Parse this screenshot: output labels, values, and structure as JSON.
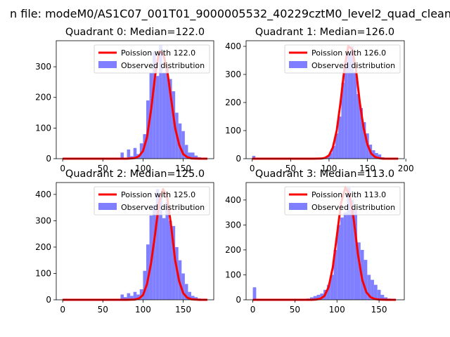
{
  "suptitle": "n file: modeM0/AS1C07_001T01_9000005532_40229cztM0_level2_quad_clean",
  "colors": {
    "bar": "#7f7fff",
    "line": "#ff0000"
  },
  "chart_data": [
    {
      "type": "bar",
      "title": "Quadrant 0: Median=122.0",
      "xlim": [
        -8,
        188
      ],
      "ylim": [
        0,
        385
      ],
      "xticks": [
        0,
        50,
        100,
        150
      ],
      "yticks": [
        0,
        100,
        200,
        300
      ],
      "legend": [
        "Poission with 122.0",
        "Observed distribution"
      ],
      "legend_position": "top-right",
      "observed": {
        "bin_width": 4,
        "x": [
          0,
          4,
          8,
          12,
          16,
          20,
          24,
          28,
          32,
          36,
          40,
          44,
          48,
          52,
          56,
          60,
          64,
          68,
          72,
          76,
          80,
          84,
          88,
          92,
          96,
          100,
          104,
          108,
          112,
          116,
          120,
          124,
          128,
          132,
          136,
          140,
          144,
          148,
          152,
          156,
          160,
          164,
          168,
          172,
          176
        ],
        "values": [
          0,
          0,
          0,
          0,
          0,
          0,
          0,
          0,
          0,
          0,
          0,
          0,
          0,
          0,
          0,
          0,
          0,
          0,
          20,
          0,
          30,
          8,
          35,
          15,
          50,
          80,
          190,
          280,
          350,
          270,
          370,
          280,
          300,
          260,
          220,
          150,
          115,
          90,
          45,
          20,
          20,
          10,
          5,
          2,
          0
        ]
      },
      "poisson": {
        "x": [
          0,
          10,
          20,
          30,
          40,
          50,
          60,
          70,
          80,
          90,
          95,
          100,
          105,
          110,
          115,
          120,
          125,
          130,
          135,
          140,
          145,
          150,
          155,
          160,
          170,
          180
        ],
        "values": [
          0,
          0,
          0,
          0,
          0,
          0,
          0,
          0,
          0.1,
          2,
          8,
          25,
          70,
          160,
          270,
          350,
          345,
          290,
          195,
          100,
          45,
          15,
          5,
          1,
          0,
          0
        ]
      }
    },
    {
      "type": "bar",
      "title": "Quadrant 1: Median=126.0",
      "xlim": [
        -8,
        198
      ],
      "ylim": [
        0,
        420
      ],
      "xticks": [
        0,
        50,
        100,
        150,
        200
      ],
      "yticks": [
        0,
        100,
        200,
        300,
        400
      ],
      "legend": [
        "Poission with 126.0",
        "Observed distribution"
      ],
      "legend_position": "top-right",
      "observed": {
        "bin_width": 4,
        "x": [
          0,
          4,
          8,
          12,
          16,
          20,
          24,
          28,
          32,
          36,
          40,
          44,
          48,
          52,
          56,
          60,
          64,
          68,
          72,
          76,
          80,
          84,
          88,
          92,
          96,
          100,
          104,
          108,
          112,
          116,
          120,
          124,
          128,
          132,
          136,
          140,
          144,
          148,
          152,
          156,
          160,
          164,
          168,
          172,
          176,
          180,
          184,
          188
        ],
        "values": [
          10,
          0,
          0,
          0,
          0,
          0,
          0,
          0,
          0,
          0,
          0,
          0,
          0,
          0,
          0,
          0,
          0,
          0,
          0,
          0,
          0,
          0,
          0,
          5,
          8,
          20,
          45,
          90,
          150,
          270,
          350,
          370,
          400,
          310,
          230,
          180,
          130,
          90,
          50,
          30,
          20,
          15,
          5,
          2,
          0,
          0,
          0,
          0
        ]
      },
      "poisson": {
        "x": [
          0,
          10,
          20,
          30,
          40,
          50,
          60,
          70,
          80,
          90,
          95,
          100,
          105,
          110,
          115,
          120,
          125,
          130,
          135,
          140,
          145,
          150,
          155,
          160,
          165,
          170,
          180,
          190
        ],
        "values": [
          0,
          0,
          0,
          0,
          0,
          0,
          0,
          0,
          0,
          0.5,
          3,
          12,
          40,
          100,
          200,
          320,
          400,
          390,
          320,
          200,
          110,
          50,
          18,
          6,
          2,
          0,
          0,
          0
        ]
      }
    },
    {
      "type": "bar",
      "title": "Quadrant 2: Median=125.0",
      "xlim": [
        -8,
        188
      ],
      "ylim": [
        0,
        445
      ],
      "xticks": [
        0,
        50,
        100,
        150
      ],
      "yticks": [
        0,
        100,
        200,
        300,
        400
      ],
      "legend": [
        "Poission with 125.0",
        "Observed distribution"
      ],
      "legend_position": "top-right",
      "observed": {
        "bin_width": 4,
        "x": [
          0,
          4,
          8,
          12,
          16,
          20,
          24,
          28,
          32,
          36,
          40,
          44,
          48,
          52,
          56,
          60,
          64,
          68,
          72,
          76,
          80,
          84,
          88,
          92,
          96,
          100,
          104,
          108,
          112,
          116,
          120,
          124,
          128,
          132,
          136,
          140,
          144,
          148,
          152,
          156,
          160,
          164,
          168,
          172,
          176
        ],
        "values": [
          0,
          0,
          0,
          0,
          0,
          0,
          0,
          0,
          0,
          0,
          0,
          0,
          0,
          0,
          0,
          0,
          0,
          0,
          20,
          10,
          25,
          15,
          30,
          20,
          40,
          110,
          210,
          320,
          360,
          420,
          400,
          310,
          370,
          300,
          280,
          200,
          150,
          100,
          60,
          30,
          15,
          10,
          5,
          2,
          0
        ]
      },
      "poisson": {
        "x": [
          0,
          10,
          20,
          30,
          40,
          50,
          60,
          70,
          80,
          90,
          95,
          100,
          105,
          110,
          115,
          120,
          125,
          130,
          135,
          140,
          145,
          150,
          155,
          160,
          170,
          180
        ],
        "values": [
          0,
          0,
          0,
          0,
          0,
          0,
          0,
          0,
          0,
          1,
          5,
          18,
          60,
          140,
          250,
          370,
          420,
          390,
          280,
          150,
          70,
          25,
          8,
          2,
          0,
          0
        ]
      }
    },
    {
      "type": "bar",
      "title": "Quadrant 3: Median=113.0",
      "xlim": [
        -8,
        180
      ],
      "ylim": [
        0,
        470
      ],
      "xticks": [
        0,
        50,
        100,
        150
      ],
      "yticks": [
        0,
        100,
        200,
        300,
        400
      ],
      "legend": [
        "Poission with 113.0",
        "Observed distribution"
      ],
      "legend_position": "top-right",
      "observed": {
        "bin_width": 4,
        "x": [
          0,
          4,
          8,
          12,
          16,
          20,
          24,
          28,
          32,
          36,
          40,
          44,
          48,
          52,
          56,
          60,
          64,
          68,
          72,
          76,
          80,
          84,
          88,
          92,
          96,
          100,
          104,
          108,
          112,
          116,
          120,
          124,
          128,
          132,
          136,
          140,
          144,
          148,
          152,
          156,
          160,
          164,
          168
        ],
        "values": [
          50,
          0,
          0,
          0,
          0,
          0,
          0,
          0,
          0,
          0,
          0,
          0,
          0,
          0,
          0,
          0,
          5,
          10,
          15,
          20,
          25,
          40,
          60,
          100,
          200,
          300,
          330,
          350,
          450,
          400,
          360,
          230,
          200,
          160,
          100,
          80,
          60,
          40,
          20,
          10,
          5,
          2,
          0
        ]
      },
      "poisson": {
        "x": [
          0,
          10,
          20,
          30,
          40,
          50,
          60,
          70,
          75,
          80,
          85,
          90,
          95,
          100,
          105,
          110,
          115,
          120,
          125,
          130,
          135,
          140,
          145,
          150,
          160,
          170
        ],
        "values": [
          0,
          0,
          0,
          0,
          0,
          0,
          0,
          0,
          1,
          4,
          15,
          50,
          130,
          260,
          390,
          450,
          420,
          320,
          180,
          80,
          30,
          10,
          3,
          1,
          0,
          0
        ]
      }
    }
  ]
}
